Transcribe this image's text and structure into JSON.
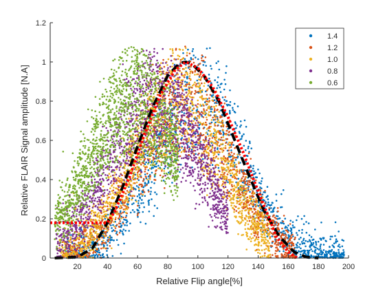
{
  "chart_data": {
    "type": "scatter",
    "title": "",
    "xlabel": "Relative Flip angle[%]",
    "ylabel": "Relative FLAIR Signal amplitude [N.A]",
    "xlim": [
      2,
      200
    ],
    "ylim": [
      0,
      1.2
    ],
    "xticks": [
      20,
      40,
      60,
      80,
      100,
      120,
      140,
      160,
      180,
      200
    ],
    "yticks": [
      0,
      0.2,
      0.4,
      0.6,
      0.8,
      1,
      1.2
    ],
    "xtick_labels": [
      "20",
      "40",
      "60",
      "80",
      "100",
      "120",
      "140",
      "160",
      "180",
      "200"
    ],
    "ytick_labels": [
      "0",
      "0.2",
      "0.4",
      "0.6",
      "0.8",
      "1",
      "1.2"
    ],
    "grid": false,
    "legend_position": "top-right",
    "series": [
      {
        "name": "1.4",
        "color": "#0072bd",
        "x_range": [
          12,
          197
        ],
        "peak_x": 100,
        "spread": 1.0
      },
      {
        "name": "1.2",
        "color": "#d95319",
        "x_range": [
          10,
          165
        ],
        "peak_x": 92,
        "spread": 1.0
      },
      {
        "name": "1.0",
        "color": "#edb120",
        "x_range": [
          8,
          148
        ],
        "peak_x": 86,
        "spread": 1.0
      },
      {
        "name": "0.8",
        "color": "#7e2f8e",
        "x_range": [
          6,
          120
        ],
        "peak_x": 72,
        "spread": 1.0
      },
      {
        "name": "0.6",
        "color": "#77ac30",
        "x_range": [
          5,
          87
        ],
        "peak_x": 58,
        "spread": 1.0
      }
    ],
    "fit_curve": {
      "style": "dashed",
      "color": "#000000",
      "points": [
        [
          5,
          0
        ],
        [
          20,
          0.005
        ],
        [
          30,
          0.05
        ],
        [
          40,
          0.18
        ],
        [
          50,
          0.36
        ],
        [
          60,
          0.57
        ],
        [
          70,
          0.77
        ],
        [
          80,
          0.93
        ],
        [
          88,
          0.995
        ],
        [
          92,
          1.0
        ],
        [
          96,
          0.99
        ],
        [
          104,
          0.93
        ],
        [
          114,
          0.8
        ],
        [
          124,
          0.61
        ],
        [
          134,
          0.42
        ],
        [
          144,
          0.24
        ],
        [
          154,
          0.11
        ],
        [
          164,
          0.03
        ],
        [
          172,
          0.005
        ],
        [
          180,
          0
        ]
      ]
    },
    "reference_curve": {
      "style": "dotted",
      "color": "#ff0000",
      "points": [
        [
          2,
          0.18
        ],
        [
          40,
          0.18
        ],
        [
          45,
          0.24
        ],
        [
          55,
          0.42
        ],
        [
          65,
          0.64
        ],
        [
          75,
          0.83
        ],
        [
          85,
          0.96
        ],
        [
          92,
          1.0
        ],
        [
          100,
          0.97
        ],
        [
          110,
          0.87
        ],
        [
          120,
          0.72
        ],
        [
          130,
          0.54
        ],
        [
          140,
          0.34
        ],
        [
          148,
          0.19
        ],
        [
          152,
          0.11
        ],
        [
          160,
          0.03
        ],
        [
          166,
          0
        ]
      ]
    }
  }
}
